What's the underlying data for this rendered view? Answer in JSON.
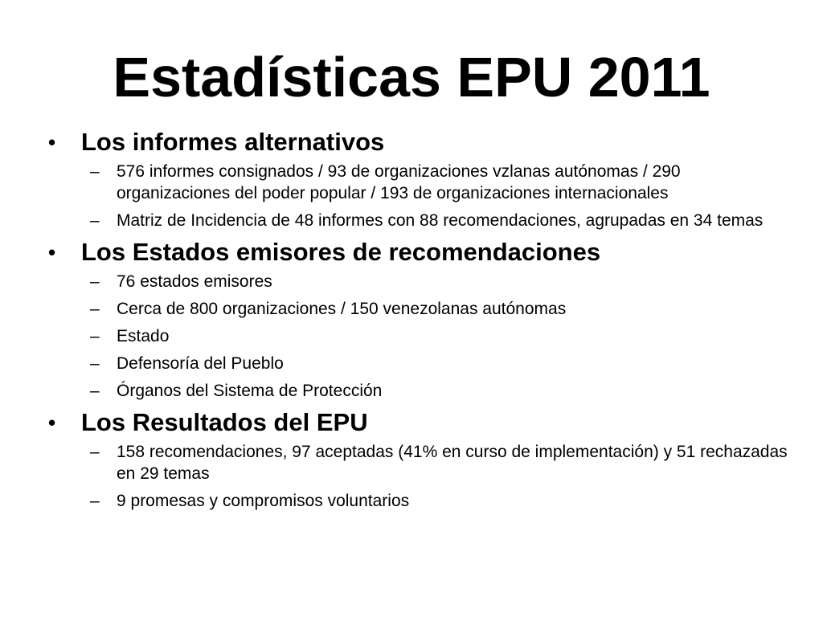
{
  "slide": {
    "title": "Estadísticas EPU 2011",
    "bullet_glyph": "•",
    "dash_glyph": "–",
    "sections": [
      {
        "heading": "Los informes alternativos",
        "items": [
          "576 informes consignados / 93 de organizaciones vzlanas autónomas / 290 organizaciones del poder popular / 193 de organizaciones internacionales",
          "Matriz de Incidencia de 48 informes con 88 recomendaciones, agrupadas en 34 temas"
        ]
      },
      {
        "heading": "Los Estados emisores de recomendaciones",
        "items": [
          "76 estados emisores",
          "Cerca de 800 organizaciones / 150 venezolanas autónomas",
          "Estado",
          "Defensoría del Pueblo",
          "Órganos del Sistema de Protección"
        ]
      },
      {
        "heading": "Los Resultados del EPU",
        "items": [
          "158 recomendaciones, 97 aceptadas (41% en curso de implementación) y 51 rechazadas en 29 temas",
          "9 promesas y compromisos voluntarios"
        ]
      }
    ]
  }
}
